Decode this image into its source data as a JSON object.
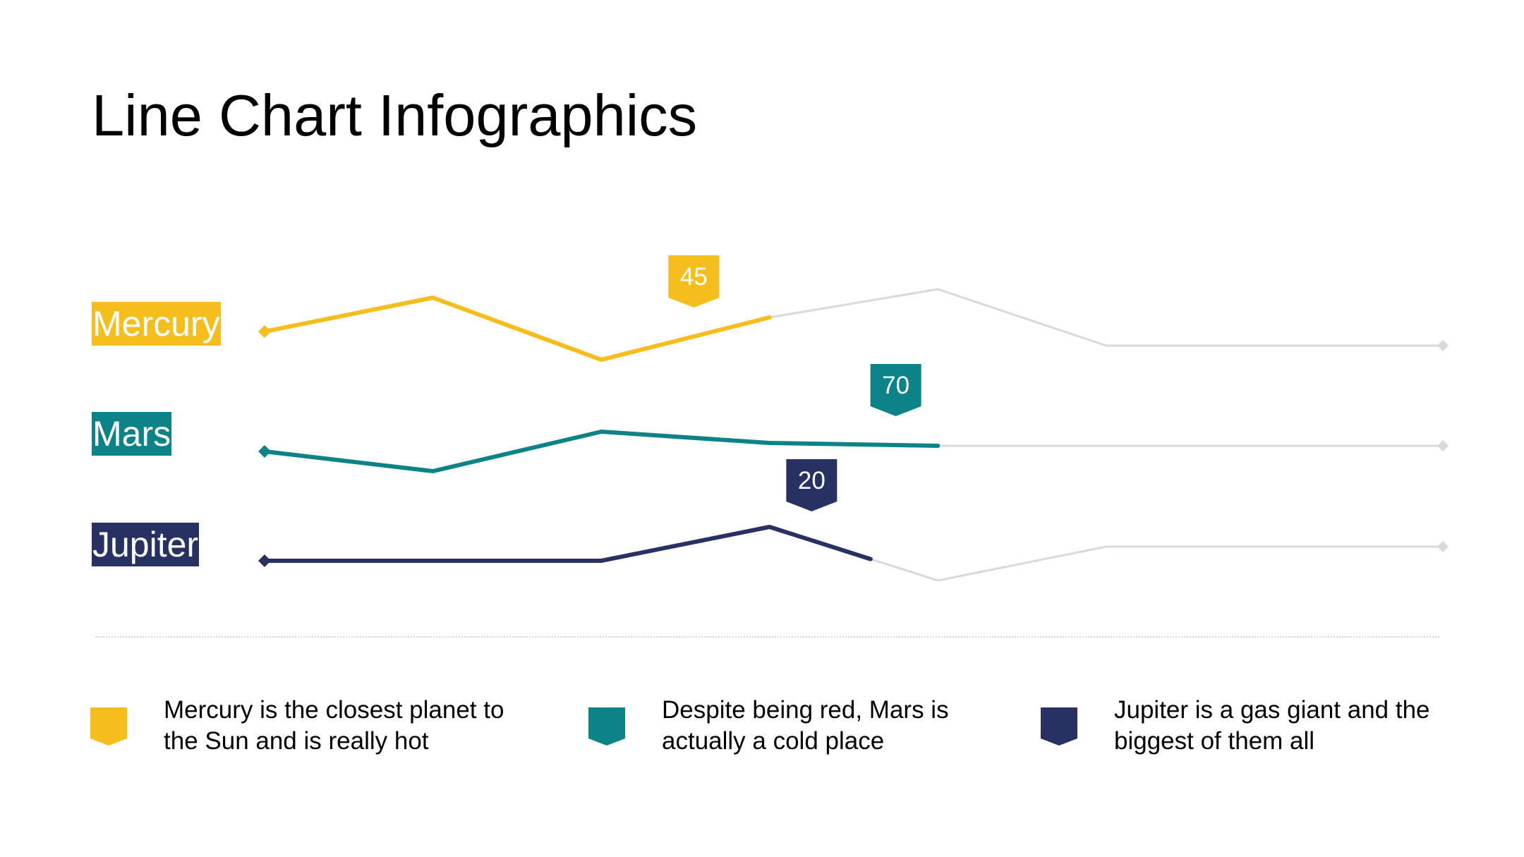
{
  "title": "Line Chart Infographics",
  "colors": {
    "mercury": "#F5BE1D",
    "mars": "#0C8386",
    "jupiter": "#283262",
    "inactive": "#D9D9D9"
  },
  "chart_data": {
    "type": "line",
    "title": "Line Chart Infographics",
    "x_points": 8,
    "note": "Each planet line is drawn in its accent color up to the highlighted point; the remainder is shown in light gray. y is relative height (0-100).",
    "series": [
      {
        "name": "Mercury",
        "color": "#F5BE1D",
        "values": [
          50,
          62,
          40,
          55,
          65,
          45,
          45,
          45
        ],
        "highlight_index": 3,
        "tag": "45",
        "tag_index": 2.55
      },
      {
        "name": "Mars",
        "color": "#0C8386",
        "values": [
          45,
          38,
          52,
          48,
          47,
          47,
          47,
          47
        ],
        "highlight_index": 4,
        "tag": "70",
        "tag_index": 3.75
      },
      {
        "name": "Jupiter",
        "color": "#283262",
        "values": [
          45,
          45,
          45,
          57,
          38,
          50,
          50,
          50
        ],
        "highlight_index": 3.6,
        "tag": "20",
        "tag_index": 3.25
      }
    ]
  },
  "legend": [
    {
      "series": "Mercury",
      "color": "#F5BE1D",
      "text": "Mercury is the closest planet to the Sun and is really hot"
    },
    {
      "series": "Mars",
      "color": "#0C8386",
      "text": "Despite being red, Mars is actually a cold place"
    },
    {
      "series": "Jupiter",
      "color": "#283262",
      "text": "Jupiter is a gas giant and the biggest of them all"
    }
  ]
}
